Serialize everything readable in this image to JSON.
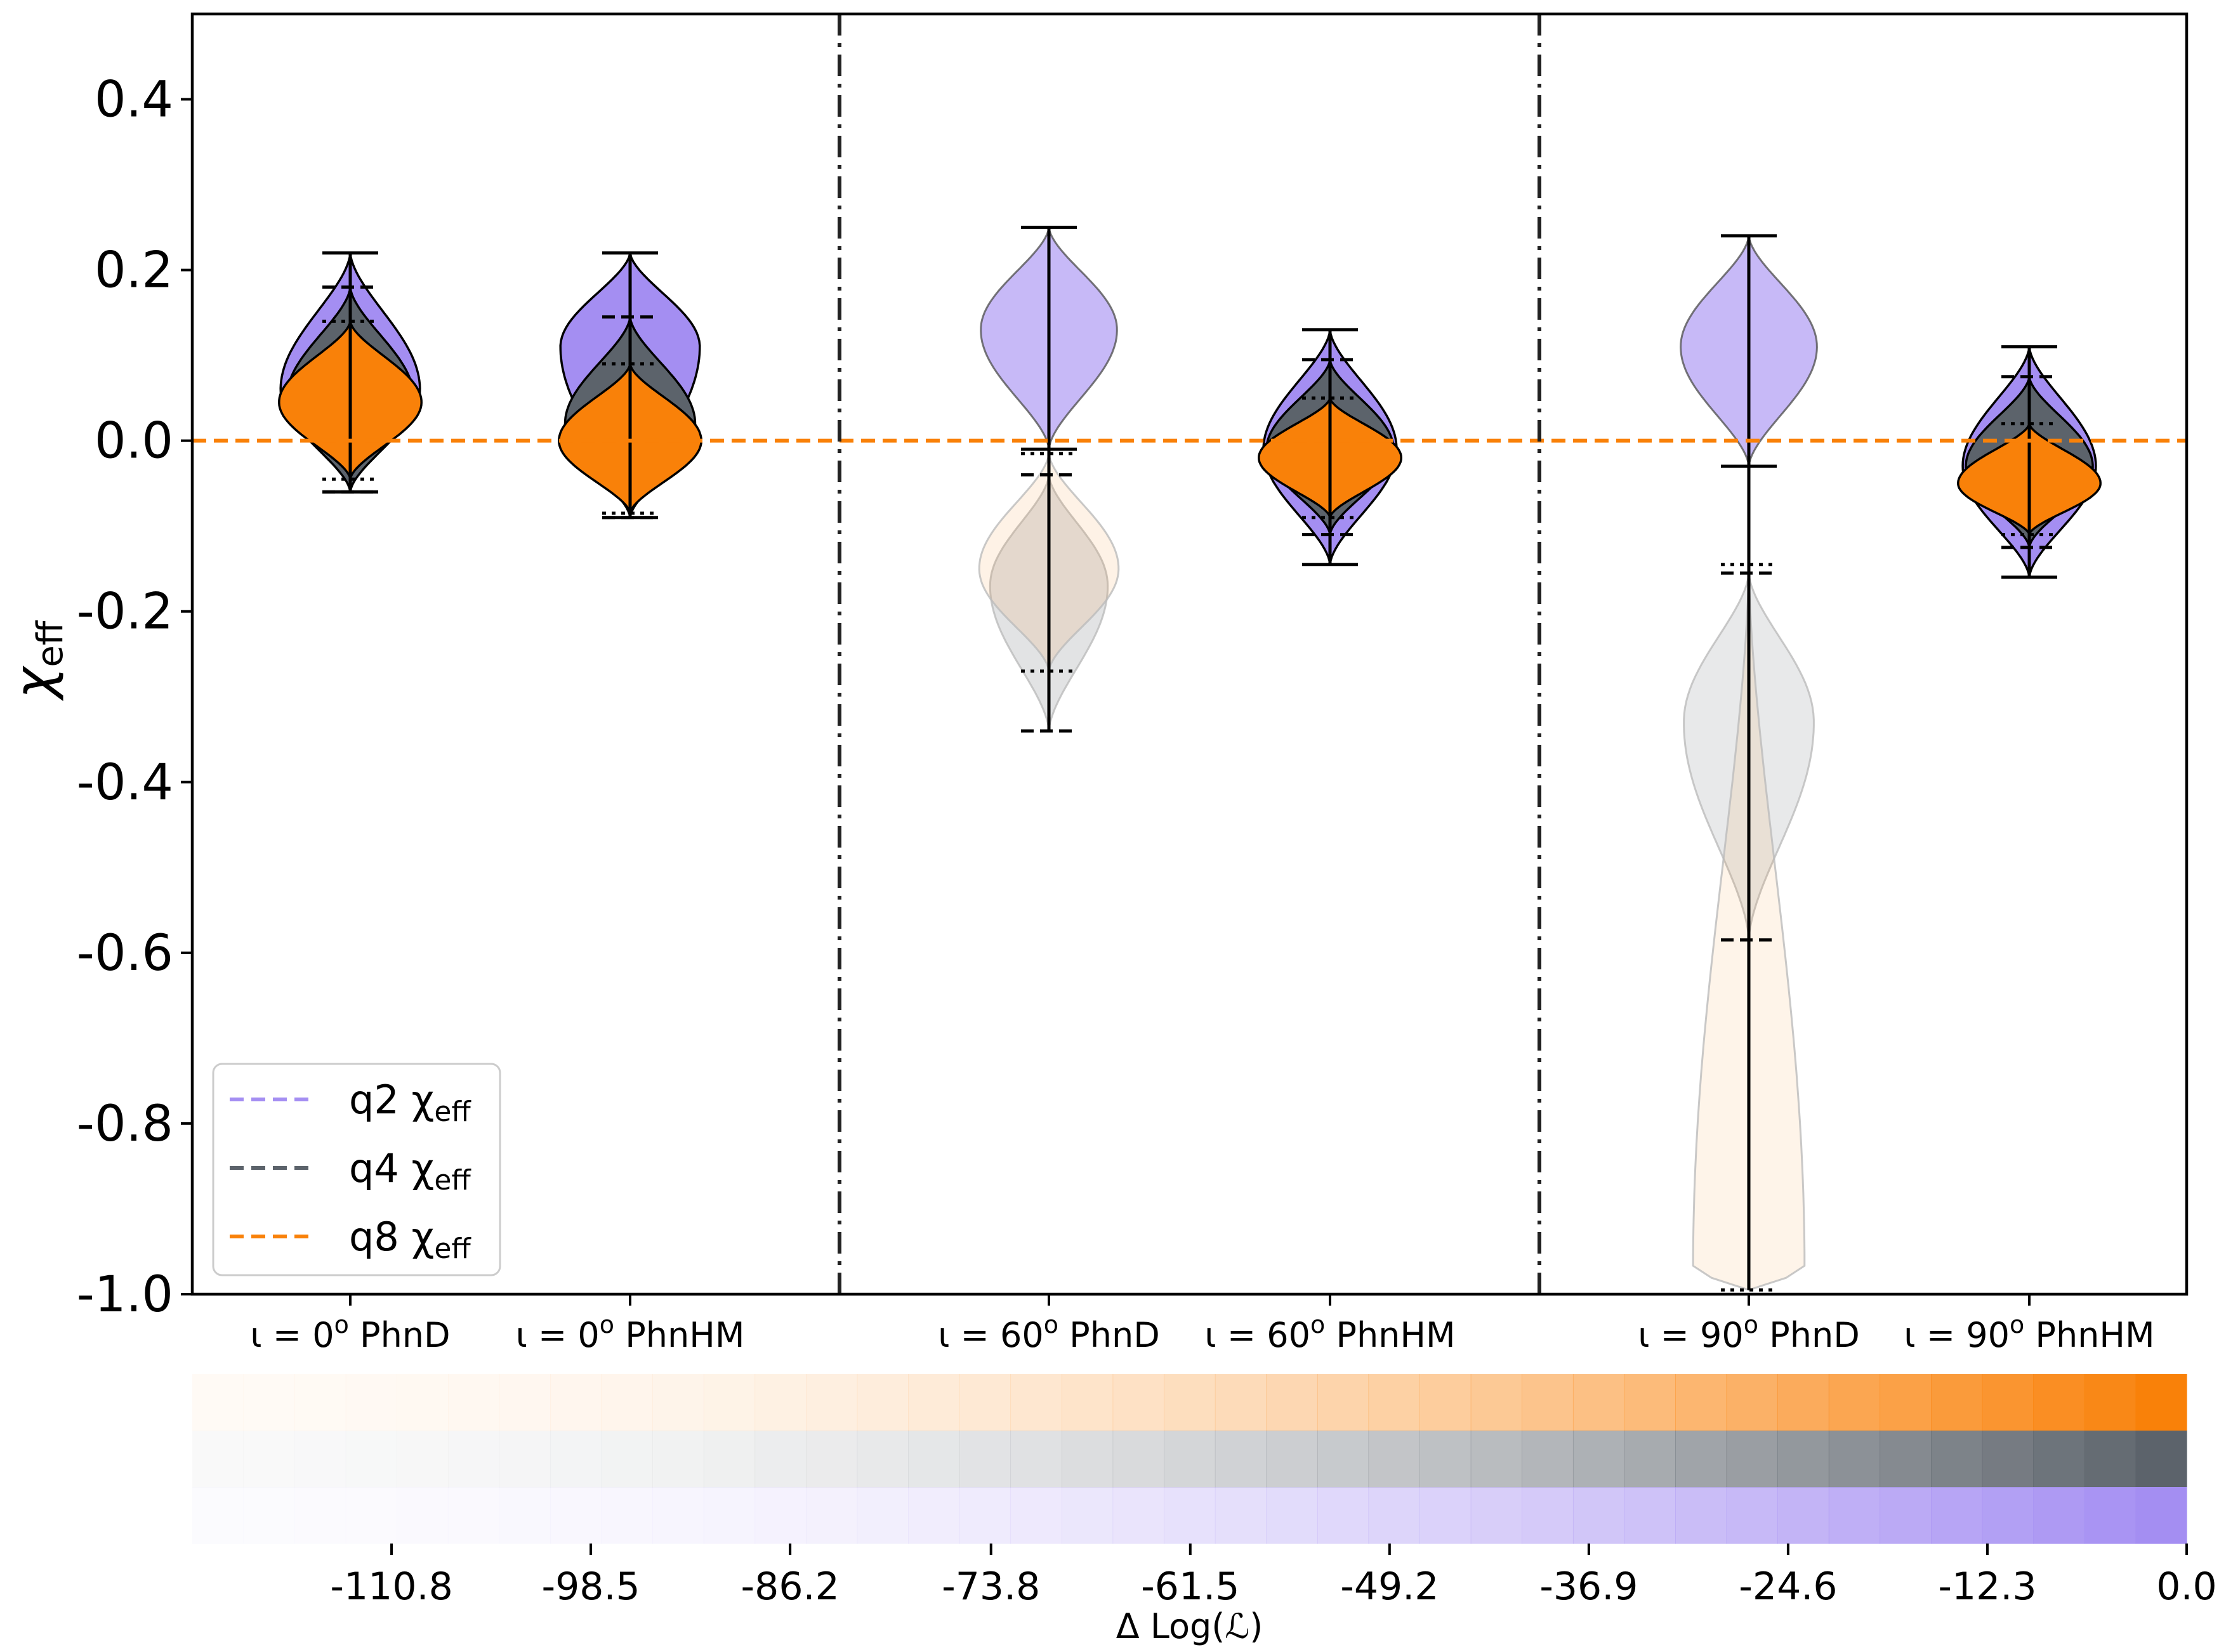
{
  "chart_data": {
    "type": "violin",
    "ylabel": "χ",
    "ylabel_sub": "eff",
    "ylim": [
      -1.0,
      0.5
    ],
    "yticks": [
      {
        "v": 0.4,
        "label": "0.4"
      },
      {
        "v": 0.2,
        "label": "0.2"
      },
      {
        "v": 0.0,
        "label": "0.0"
      },
      {
        "v": -0.2,
        "label": "-0.2"
      },
      {
        "v": -0.4,
        "label": "-0.4"
      },
      {
        "v": -0.6,
        "label": "-0.6"
      },
      {
        "v": -0.8,
        "label": "-0.8"
      },
      {
        "v": -1.0,
        "label": "-1.0"
      }
    ],
    "categories": [
      {
        "pre": "ι = 0",
        "sup": "o",
        "post": " PhnD"
      },
      {
        "pre": "ι = 0",
        "sup": "o",
        "post": " PhnHM"
      },
      {
        "pre": "ι = 60",
        "sup": "o",
        "post": " PhnD"
      },
      {
        "pre": "ι = 60",
        "sup": "o",
        "post": " PhnHM"
      },
      {
        "pre": "ι = 90",
        "sup": "o",
        "post": " PhnD"
      },
      {
        "pre": "ι = 90",
        "sup": "o",
        "post": " PhnHM"
      }
    ],
    "group_separators_after": [
      2,
      4
    ],
    "injected_value": 0.0,
    "legend": {
      "location": "lower-left",
      "entries": [
        {
          "label": "q2 χ",
          "sub": "eff",
          "color": "#a48ef2"
        },
        {
          "label": "q4 χ",
          "sub": "eff",
          "color": "#5c636b"
        },
        {
          "label": "q8 χ",
          "sub": "eff",
          "color": "#f98109"
        }
      ]
    },
    "series": [
      {
        "name": "q2",
        "color": "#a48ef2",
        "violins": [
          {
            "cat": 0,
            "min": -0.06,
            "max": 0.22,
            "mode": 0.06,
            "width": 0.9,
            "alpha": 1.0,
            "marker": "solid"
          },
          {
            "cat": 1,
            "min": -0.09,
            "max": 0.22,
            "mode": 0.11,
            "width": 0.9,
            "alpha": 1.0,
            "marker": "solid"
          },
          {
            "cat": 2,
            "min": -0.01,
            "max": 0.25,
            "mode": 0.13,
            "width": 0.88,
            "alpha": 0.62,
            "marker": "solid"
          },
          {
            "cat": 3,
            "min": -0.145,
            "max": 0.13,
            "mode": -0.01,
            "width": 0.86,
            "alpha": 1.0,
            "marker": "solid"
          },
          {
            "cat": 4,
            "min": -0.03,
            "max": 0.24,
            "mode": 0.11,
            "width": 0.88,
            "alpha": 0.62,
            "marker": "solid"
          },
          {
            "cat": 5,
            "min": -0.16,
            "max": 0.11,
            "mode": -0.03,
            "width": 0.86,
            "alpha": 1.0,
            "marker": "solid"
          }
        ]
      },
      {
        "name": "q4",
        "color": "#5c636b",
        "violins": [
          {
            "cat": 0,
            "min": -0.06,
            "max": 0.18,
            "mode": 0.05,
            "width": 0.82,
            "alpha": 1.0,
            "marker": "dashed"
          },
          {
            "cat": 1,
            "min": -0.09,
            "max": 0.145,
            "mode": 0.02,
            "width": 0.84,
            "alpha": 1.0,
            "marker": "dashed"
          },
          {
            "cat": 2,
            "min": -0.34,
            "max": -0.04,
            "mode": -0.17,
            "width": 0.76,
            "alpha": 0.18,
            "marker": "dashed"
          },
          {
            "cat": 3,
            "min": -0.11,
            "max": 0.095,
            "mode": -0.01,
            "width": 0.82,
            "alpha": 1.0,
            "marker": "dashed"
          },
          {
            "cat": 4,
            "min": -0.585,
            "max": -0.155,
            "mode": -0.33,
            "width": 0.84,
            "alpha": 0.14,
            "marker": "dashed"
          },
          {
            "cat": 5,
            "min": -0.125,
            "max": 0.075,
            "mode": -0.03,
            "width": 0.82,
            "alpha": 1.0,
            "marker": "dashed"
          }
        ]
      },
      {
        "name": "q8",
        "color": "#f98109",
        "violins": [
          {
            "cat": 0,
            "min": -0.045,
            "max": 0.14,
            "mode": 0.045,
            "width": 0.92,
            "alpha": 1.0,
            "marker": "dotted"
          },
          {
            "cat": 1,
            "min": -0.085,
            "max": 0.09,
            "mode": 0.0,
            "width": 0.92,
            "alpha": 1.0,
            "marker": "dotted"
          },
          {
            "cat": 2,
            "min": -0.27,
            "max": -0.015,
            "mode": -0.15,
            "width": 0.9,
            "alpha": 0.1,
            "marker": "dotted"
          },
          {
            "cat": 3,
            "min": -0.09,
            "max": 0.05,
            "mode": -0.02,
            "width": 0.92,
            "alpha": 1.0,
            "marker": "dotted"
          },
          {
            "cat": 4,
            "min": -0.995,
            "max": -0.145,
            "mode": -0.97,
            "width": 0.72,
            "alpha": 0.09,
            "marker": "dotted"
          },
          {
            "cat": 5,
            "min": -0.11,
            "max": 0.02,
            "mode": -0.05,
            "width": 0.92,
            "alpha": 1.0,
            "marker": "dotted"
          }
        ]
      }
    ],
    "colorbar": {
      "xlabel": "Δ Log(ℒ)",
      "rows": [
        "#f98109",
        "#5c636b",
        "#a48ef2"
      ],
      "ticks": [
        {
          "v": -110.8,
          "label": "-110.8"
        },
        {
          "v": -98.5,
          "label": "-98.5"
        },
        {
          "v": -86.2,
          "label": "-86.2"
        },
        {
          "v": -73.8,
          "label": "-73.8"
        },
        {
          "v": -61.5,
          "label": "-61.5"
        },
        {
          "v": -49.2,
          "label": "-49.2"
        },
        {
          "v": -36.9,
          "label": "-36.9"
        },
        {
          "v": -24.6,
          "label": "-24.6"
        },
        {
          "v": -12.3,
          "label": "-12.3"
        },
        {
          "v": 0.0,
          "label": "0.0"
        }
      ],
      "range": [
        -123.1,
        0.0
      ],
      "n_cells": 39
    }
  }
}
